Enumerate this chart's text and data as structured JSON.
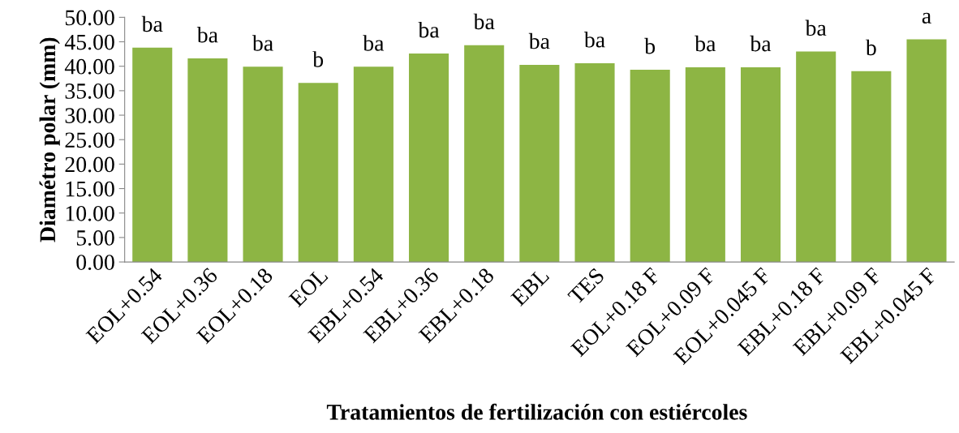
{
  "chart_data": {
    "type": "bar",
    "xlabel": "Tratamientos de fertilización con estiércoles",
    "ylabel": "Diamétro polar (mm)",
    "categories": [
      "EOL+0.54",
      "EOL+0.36",
      "EOL+0.18",
      "EOL",
      "EBL+0.54",
      "EBL+0.36",
      "EBL+0.18",
      "EBL",
      "TES",
      "EOL+0.18 F",
      "EOL+0.09 F",
      "EOL+0.045 F",
      "EBL+0.18 F",
      "EBL+0.09 F",
      "EBL+0.045 F"
    ],
    "values": [
      43.8,
      41.6,
      39.9,
      36.6,
      39.9,
      42.6,
      44.3,
      40.3,
      40.6,
      39.3,
      39.8,
      39.8,
      43.0,
      39.0,
      45.5
    ],
    "color": "#8db544",
    "ylim": [
      0,
      50
    ],
    "yticks": [
      {
        "value": 0,
        "label": "0.00"
      },
      {
        "value": 5,
        "label": "5.00"
      },
      {
        "value": 10,
        "label": "10.00"
      },
      {
        "value": 15,
        "label": "15.00"
      },
      {
        "value": 20,
        "label": "20.00"
      },
      {
        "value": 25,
        "label": "25.00"
      },
      {
        "value": 30,
        "label": "30.00"
      },
      {
        "value": 35,
        "label": "35.00"
      },
      {
        "value": 40,
        "label": "40.00"
      },
      {
        "value": 45,
        "label": "45.00"
      },
      {
        "value": 50,
        "label": "50.00"
      }
    ],
    "annotations": [
      {
        "text": "ba",
        "x": "EOL+0.54",
        "y": 43.8
      },
      {
        "text": "ba",
        "x": "EOL+0.36",
        "y": 41.6
      },
      {
        "text": "ba",
        "x": "EOL+0.18",
        "y": 39.9
      },
      {
        "text": "b",
        "x": "EOL",
        "y": 36.6
      },
      {
        "text": "ba",
        "x": "EBL+0.54",
        "y": 39.9
      },
      {
        "text": "ba",
        "x": "EBL+0.36",
        "y": 42.6
      },
      {
        "text": "ba",
        "x": "EBL+0.18",
        "y": 44.3
      },
      {
        "text": "ba",
        "x": "EBL",
        "y": 40.3
      },
      {
        "text": "ba",
        "x": "TES",
        "y": 40.6
      },
      {
        "text": "b",
        "x": "EOL+0.18 F",
        "y": 39.3
      },
      {
        "text": "ba",
        "x": "EOL+0.09 F",
        "y": 39.8
      },
      {
        "text": "ba",
        "x": "EOL+0.045 F",
        "y": 39.8
      },
      {
        "text": "ba",
        "x": "EBL+0.18 F",
        "y": 43.0
      },
      {
        "text": "b",
        "x": "EBL+0.09 F",
        "y": 39.0
      },
      {
        "text": "a",
        "x": "EBL+0.045 F",
        "y": 45.5
      }
    ],
    "grid": false,
    "legend": false
  }
}
